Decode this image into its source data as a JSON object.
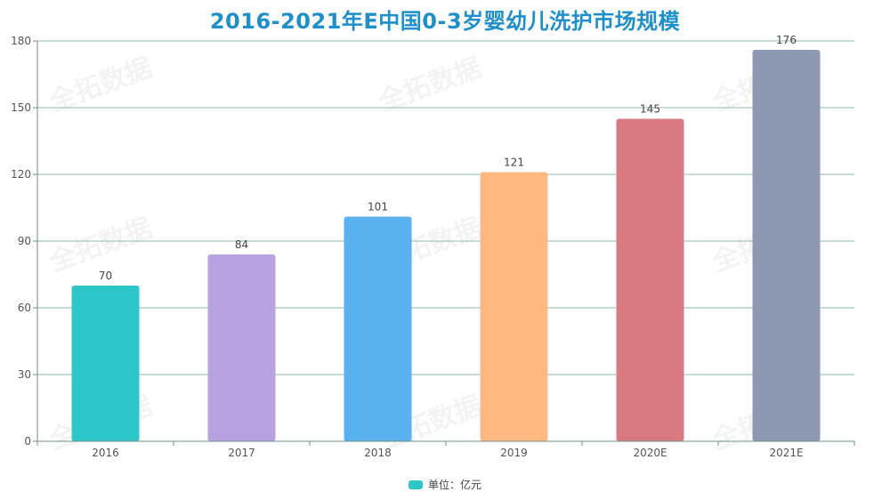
{
  "chart_data": {
    "type": "bar",
    "title": "2016-2021年E中国0-3岁婴幼儿洗护市场规模",
    "categories": [
      "2016",
      "2017",
      "2018",
      "2019",
      "2020E",
      "2021E"
    ],
    "values": [
      70,
      84,
      101,
      121,
      145,
      176
    ],
    "bar_colors": [
      "#2ec7c9",
      "#b6a2de",
      "#5ab1ef",
      "#ffb980",
      "#d87a80",
      "#8d98b3"
    ],
    "yticks": [
      0,
      30,
      60,
      90,
      120,
      150,
      180
    ],
    "ylim": [
      0,
      180
    ],
    "grid": true,
    "legend": {
      "label": "单位：亿元",
      "color": "#2ec7c9",
      "position": "bottom-center"
    },
    "watermark": "全拓数据"
  },
  "colors": {
    "title": "#1f8fc9",
    "grid": "#8fb8b0",
    "axis": "#6e8f8a"
  }
}
